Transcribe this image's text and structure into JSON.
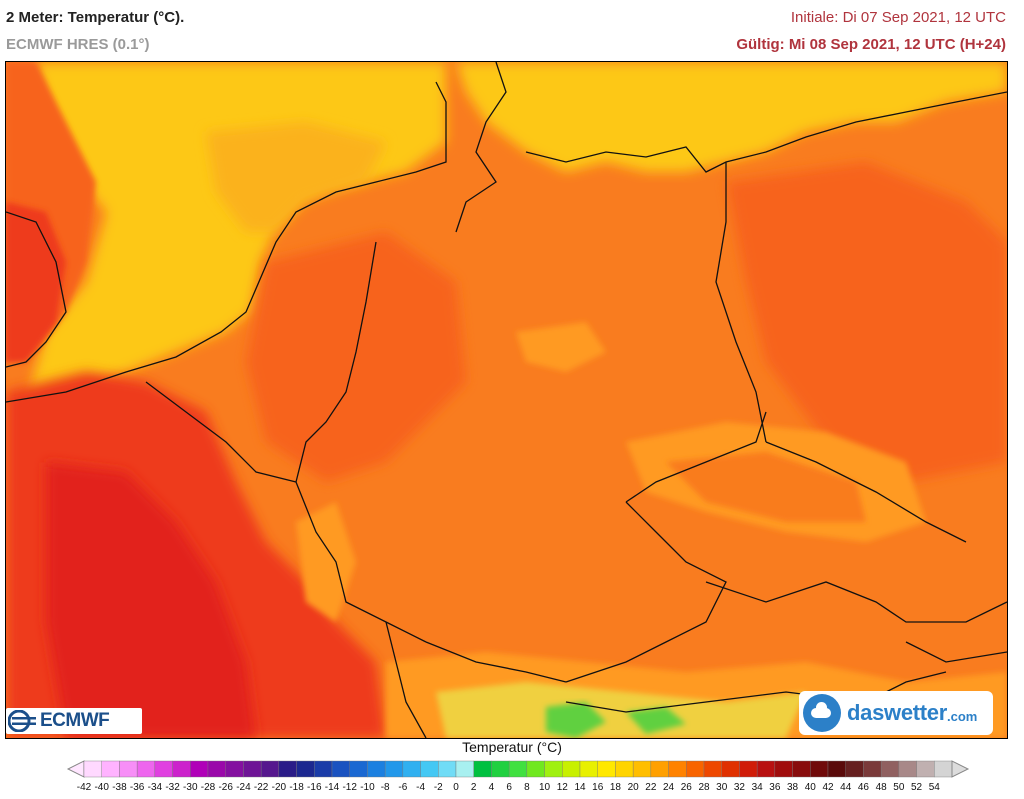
{
  "header": {
    "title": "2 Meter: Temperatur (°C).",
    "model": "ECMWF HRES (0.1°)",
    "initial": "Initiale: Di 07 Sep 2021, 12 UTC",
    "valid": "Gültig: Mi 08 Sep 2021, 12 UTC (H+24)"
  },
  "logos": {
    "ecmwf": "ECMWF",
    "daswetter_name": "daswetter",
    "daswetter_domain": ".com"
  },
  "legend": {
    "title": "Temperatur (°C)",
    "ticks": [
      "-42",
      "-40",
      "-38",
      "-36",
      "-34",
      "-32",
      "-30",
      "-28",
      "-26",
      "-24",
      "-22",
      "-20",
      "-18",
      "-16",
      "-14",
      "-12",
      "-10",
      "-8",
      "-6",
      "-4",
      "-2",
      "0",
      "2",
      "4",
      "6",
      "8",
      "10",
      "12",
      "14",
      "16",
      "18",
      "20",
      "22",
      "24",
      "26",
      "28",
      "30",
      "32",
      "34",
      "36",
      "38",
      "40",
      "42",
      "44",
      "46",
      "48",
      "50",
      "52",
      "54"
    ],
    "colors": [
      "#ffd9ff",
      "#ffb3ff",
      "#f78ef7",
      "#ee66ee",
      "#e040e0",
      "#cc22cc",
      "#b000b8",
      "#9a08aa",
      "#8410a0",
      "#6e1496",
      "#56188e",
      "#2a1c88",
      "#1c2890",
      "#1a3ca8",
      "#1a52c0",
      "#1a68d2",
      "#1c80e0",
      "#2298ea",
      "#30b0f0",
      "#44c8f4",
      "#70dcf6",
      "#a8f0f0",
      "#00c040",
      "#20d040",
      "#40e040",
      "#70e820",
      "#a0f010",
      "#c8f000",
      "#e8f000",
      "#ffe800",
      "#ffd400",
      "#ffbe00",
      "#ffa000",
      "#ff8200",
      "#f86400",
      "#ee4800",
      "#e03000",
      "#d01c08",
      "#b81010",
      "#a00c0c",
      "#880c0c",
      "#700a0a",
      "#5a0a0a",
      "#662020",
      "#7a3a3a",
      "#906060",
      "#a88888",
      "#c0b0b0",
      "#d4d4d4"
    ]
  },
  "map_colors": {
    "sea_cool": "#fdc816",
    "sea_mid": "#fbb21c",
    "warm": "#f97c1f",
    "warmer": "#f7641f",
    "hot": "#ee3a1c",
    "hottest": "#e2201a",
    "highland": "#ff9a20",
    "mountain_yellow": "#f0d040",
    "alps_green": "#60d040"
  }
}
